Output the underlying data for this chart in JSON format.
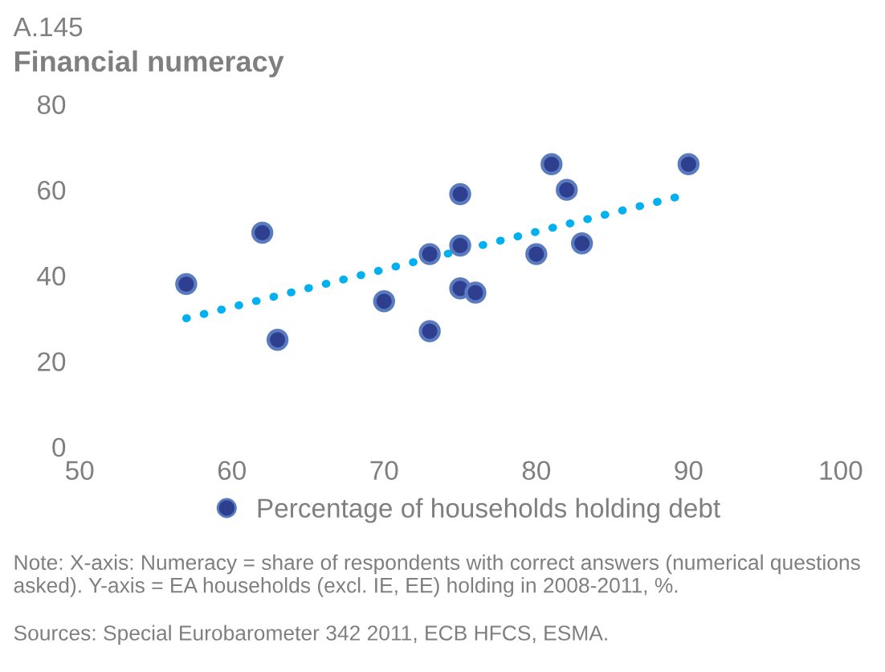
{
  "chart_data": {
    "type": "scatter",
    "title": "A.145",
    "subtitle": "Financial numeracy",
    "xlim": [
      50,
      100
    ],
    "xticks": [
      50,
      60,
      70,
      80,
      90,
      100
    ],
    "ylim": [
      0,
      80
    ],
    "yticks": [
      0,
      20,
      40,
      60,
      80
    ],
    "grid": false,
    "legend": "bottom",
    "marker": "circle",
    "series": [
      {
        "name": "Percentage of households holding debt",
        "color": "#2e3f8f",
        "x": [
          57,
          62,
          63,
          70,
          73,
          73,
          75,
          75,
          75,
          76,
          80,
          81,
          82,
          83,
          90
        ],
        "values": [
          38,
          50,
          25,
          34,
          45,
          27,
          59,
          47,
          37,
          36,
          45,
          66,
          60,
          47.5,
          66
        ]
      },
      {
        "type": "line",
        "color": "#00b0f0",
        "line_style": "dotted",
        "marker": "none",
        "x": [
          57,
          90
        ],
        "values": [
          30,
          59
        ]
      }
    ],
    "annotations": [
      "Note: X-axis: Numeracy = share of respondents with correct answers (numerical questions asked). Y-axis = EA households (excl. IE, EE) holding in 2008-2011, %.",
      "Sources: Special Eurobarometer 342 2011, ECB HFCS, ESMA."
    ]
  }
}
